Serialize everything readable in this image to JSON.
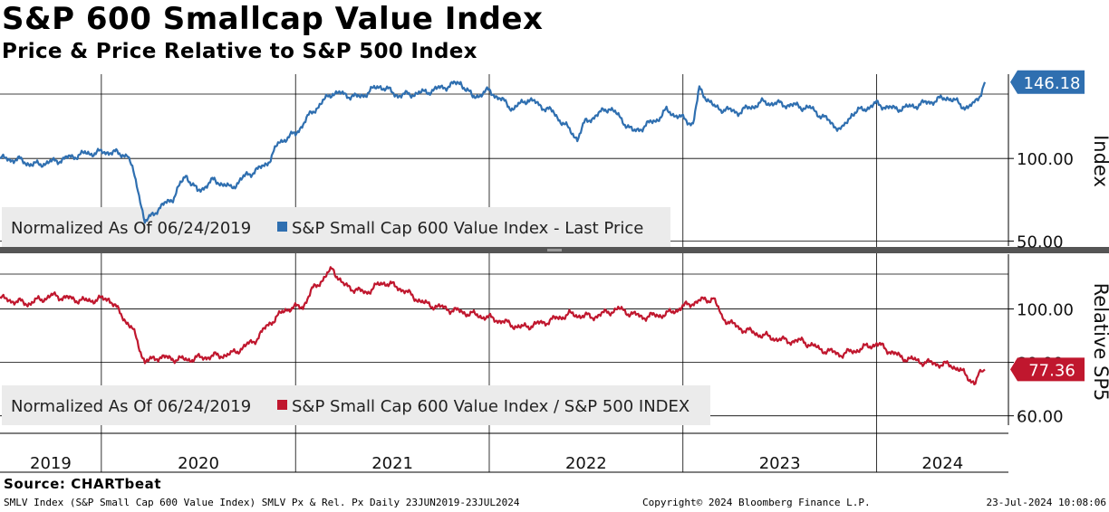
{
  "header": {
    "title": "S&P 600 Smallcap Value Index",
    "subtitle": "Price & Price Relative to S&P 500 Index"
  },
  "footer": {
    "source": "Source: CHARTbeat",
    "ticker_info": "SMLV Index (S&P Small Cap 600 Value Index) SMLV Px & Rel. Px  Daily 23JUN2019-23JUL2024",
    "copyright": "Copyright© 2024 Bloomberg Finance L.P.",
    "timestamp": "23-Jul-2024 10:08:06"
  },
  "colors": {
    "price": "#2f6fb0",
    "relative": "#c0172e",
    "divider": "#555555",
    "legend_bg": "#ebebeb"
  },
  "chart_data": [
    {
      "type": "line",
      "panel": "top",
      "axis_title": "Index",
      "y_ticks": [
        "100.00",
        "50.00"
      ],
      "y_tick_values": [
        100,
        50
      ],
      "ylim": [
        47,
        151
      ],
      "last_value_label": "146.18",
      "last_value": 146.18,
      "legend": {
        "prefix": "Normalized As Of 06/24/2019",
        "series_label": "S&P Small Cap 600 Value Index - Last Price"
      },
      "series": [
        {
          "name": "S&P Small Cap 600 Value Index - Last Price",
          "x": [
            "2019-06-24",
            "2019-08-01",
            "2019-08-25",
            "2019-10-01",
            "2019-12-01",
            "2020-01-15",
            "2020-02-20",
            "2020-03-10",
            "2020-03-23",
            "2020-04-15",
            "2020-05-15",
            "2020-06-08",
            "2020-06-30",
            "2020-08-01",
            "2020-09-01",
            "2020-10-01",
            "2020-11-01",
            "2020-11-15",
            "2020-12-01",
            "2021-01-01",
            "2021-02-01",
            "2021-03-12",
            "2021-05-01",
            "2021-06-08",
            "2021-07-15",
            "2021-09-01",
            "2021-11-08",
            "2021-12-01",
            "2022-01-01",
            "2022-02-15",
            "2022-03-15",
            "2022-05-01",
            "2022-06-16",
            "2022-07-01",
            "2022-08-16",
            "2022-09-30",
            "2022-11-15",
            "2022-12-01",
            "2023-01-20",
            "2023-02-01",
            "2023-03-01",
            "2023-04-15",
            "2023-06-01",
            "2023-07-31",
            "2023-09-01",
            "2023-10-27",
            "2023-11-15",
            "2024-01-01",
            "2024-02-01",
            "2024-03-01",
            "2024-05-15",
            "2024-06-15",
            "2024-07-01",
            "2024-07-10",
            "2024-07-16",
            "2024-07-23"
          ],
          "y": [
            100,
            99,
            96,
            98,
            103,
            104,
            102,
            82,
            61,
            69,
            76,
            90,
            80,
            87,
            82,
            90,
            95,
            100,
            110,
            115,
            128,
            140,
            137,
            144,
            138,
            140,
            146,
            137,
            141,
            130,
            136,
            128,
            112,
            122,
            131,
            116,
            124,
            129,
            121,
            142,
            131,
            128,
            134,
            132,
            130,
            117,
            127,
            133,
            130,
            131,
            137,
            131,
            132,
            137,
            140,
            146.18
          ]
        }
      ]
    },
    {
      "type": "line",
      "panel": "bottom",
      "axis_title": "Relative SP5",
      "y_ticks": [
        "100.00",
        "80.00",
        "60.00"
      ],
      "y_tick_values": [
        100,
        80,
        60
      ],
      "ylim": [
        56.5,
        120.5
      ],
      "last_value_label": "77.36",
      "last_value": 77.36,
      "legend": {
        "prefix": "Normalized As Of 06/24/2019",
        "series_label": "S&P Small Cap 600 Value Index / S&P 500 INDEX"
      },
      "series": [
        {
          "name": "S&P Small Cap 600 Value Index / S&P 500 INDEX",
          "x": [
            "2019-06-24",
            "2019-08-15",
            "2019-10-01",
            "2019-12-01",
            "2020-01-15",
            "2020-03-01",
            "2020-03-23",
            "2020-04-15",
            "2020-06-08",
            "2020-07-15",
            "2020-09-01",
            "2020-10-15",
            "2020-11-15",
            "2020-12-15",
            "2021-01-15",
            "2021-02-01",
            "2021-03-12",
            "2021-04-01",
            "2021-05-12",
            "2021-06-15",
            "2021-07-15",
            "2021-09-01",
            "2021-10-15",
            "2021-12-01",
            "2022-01-15",
            "2022-03-01",
            "2022-04-15",
            "2022-06-01",
            "2022-07-15",
            "2022-09-01",
            "2022-10-15",
            "2022-12-01",
            "2023-01-15",
            "2023-02-01",
            "2023-02-28",
            "2023-03-15",
            "2023-04-15",
            "2023-06-01",
            "2023-07-15",
            "2023-08-15",
            "2023-09-15",
            "2023-10-27",
            "2023-11-15",
            "2024-01-01",
            "2024-02-15",
            "2024-04-01",
            "2024-05-15",
            "2024-06-01",
            "2024-07-05",
            "2024-07-10",
            "2024-07-23"
          ],
          "y": [
            104,
            102,
            105,
            103,
            104,
            92,
            80,
            82,
            81,
            82,
            83,
            88,
            95,
            100,
            101,
            107,
            115,
            109,
            106,
            110,
            108,
            102,
            100,
            98,
            96,
            93,
            95,
            98,
            97,
            100,
            97,
            98,
            102,
            103,
            104,
            97,
            93,
            90,
            88,
            88,
            85,
            83,
            84,
            87,
            82,
            80,
            79,
            78,
            72,
            75,
            77.36
          ]
        }
      ]
    }
  ],
  "x_axis": {
    "type": "date",
    "range": [
      "2019-06-24",
      "2024-07-23"
    ],
    "year_labels": [
      "2019",
      "2020",
      "2021",
      "2022",
      "2023",
      "2024"
    ]
  }
}
